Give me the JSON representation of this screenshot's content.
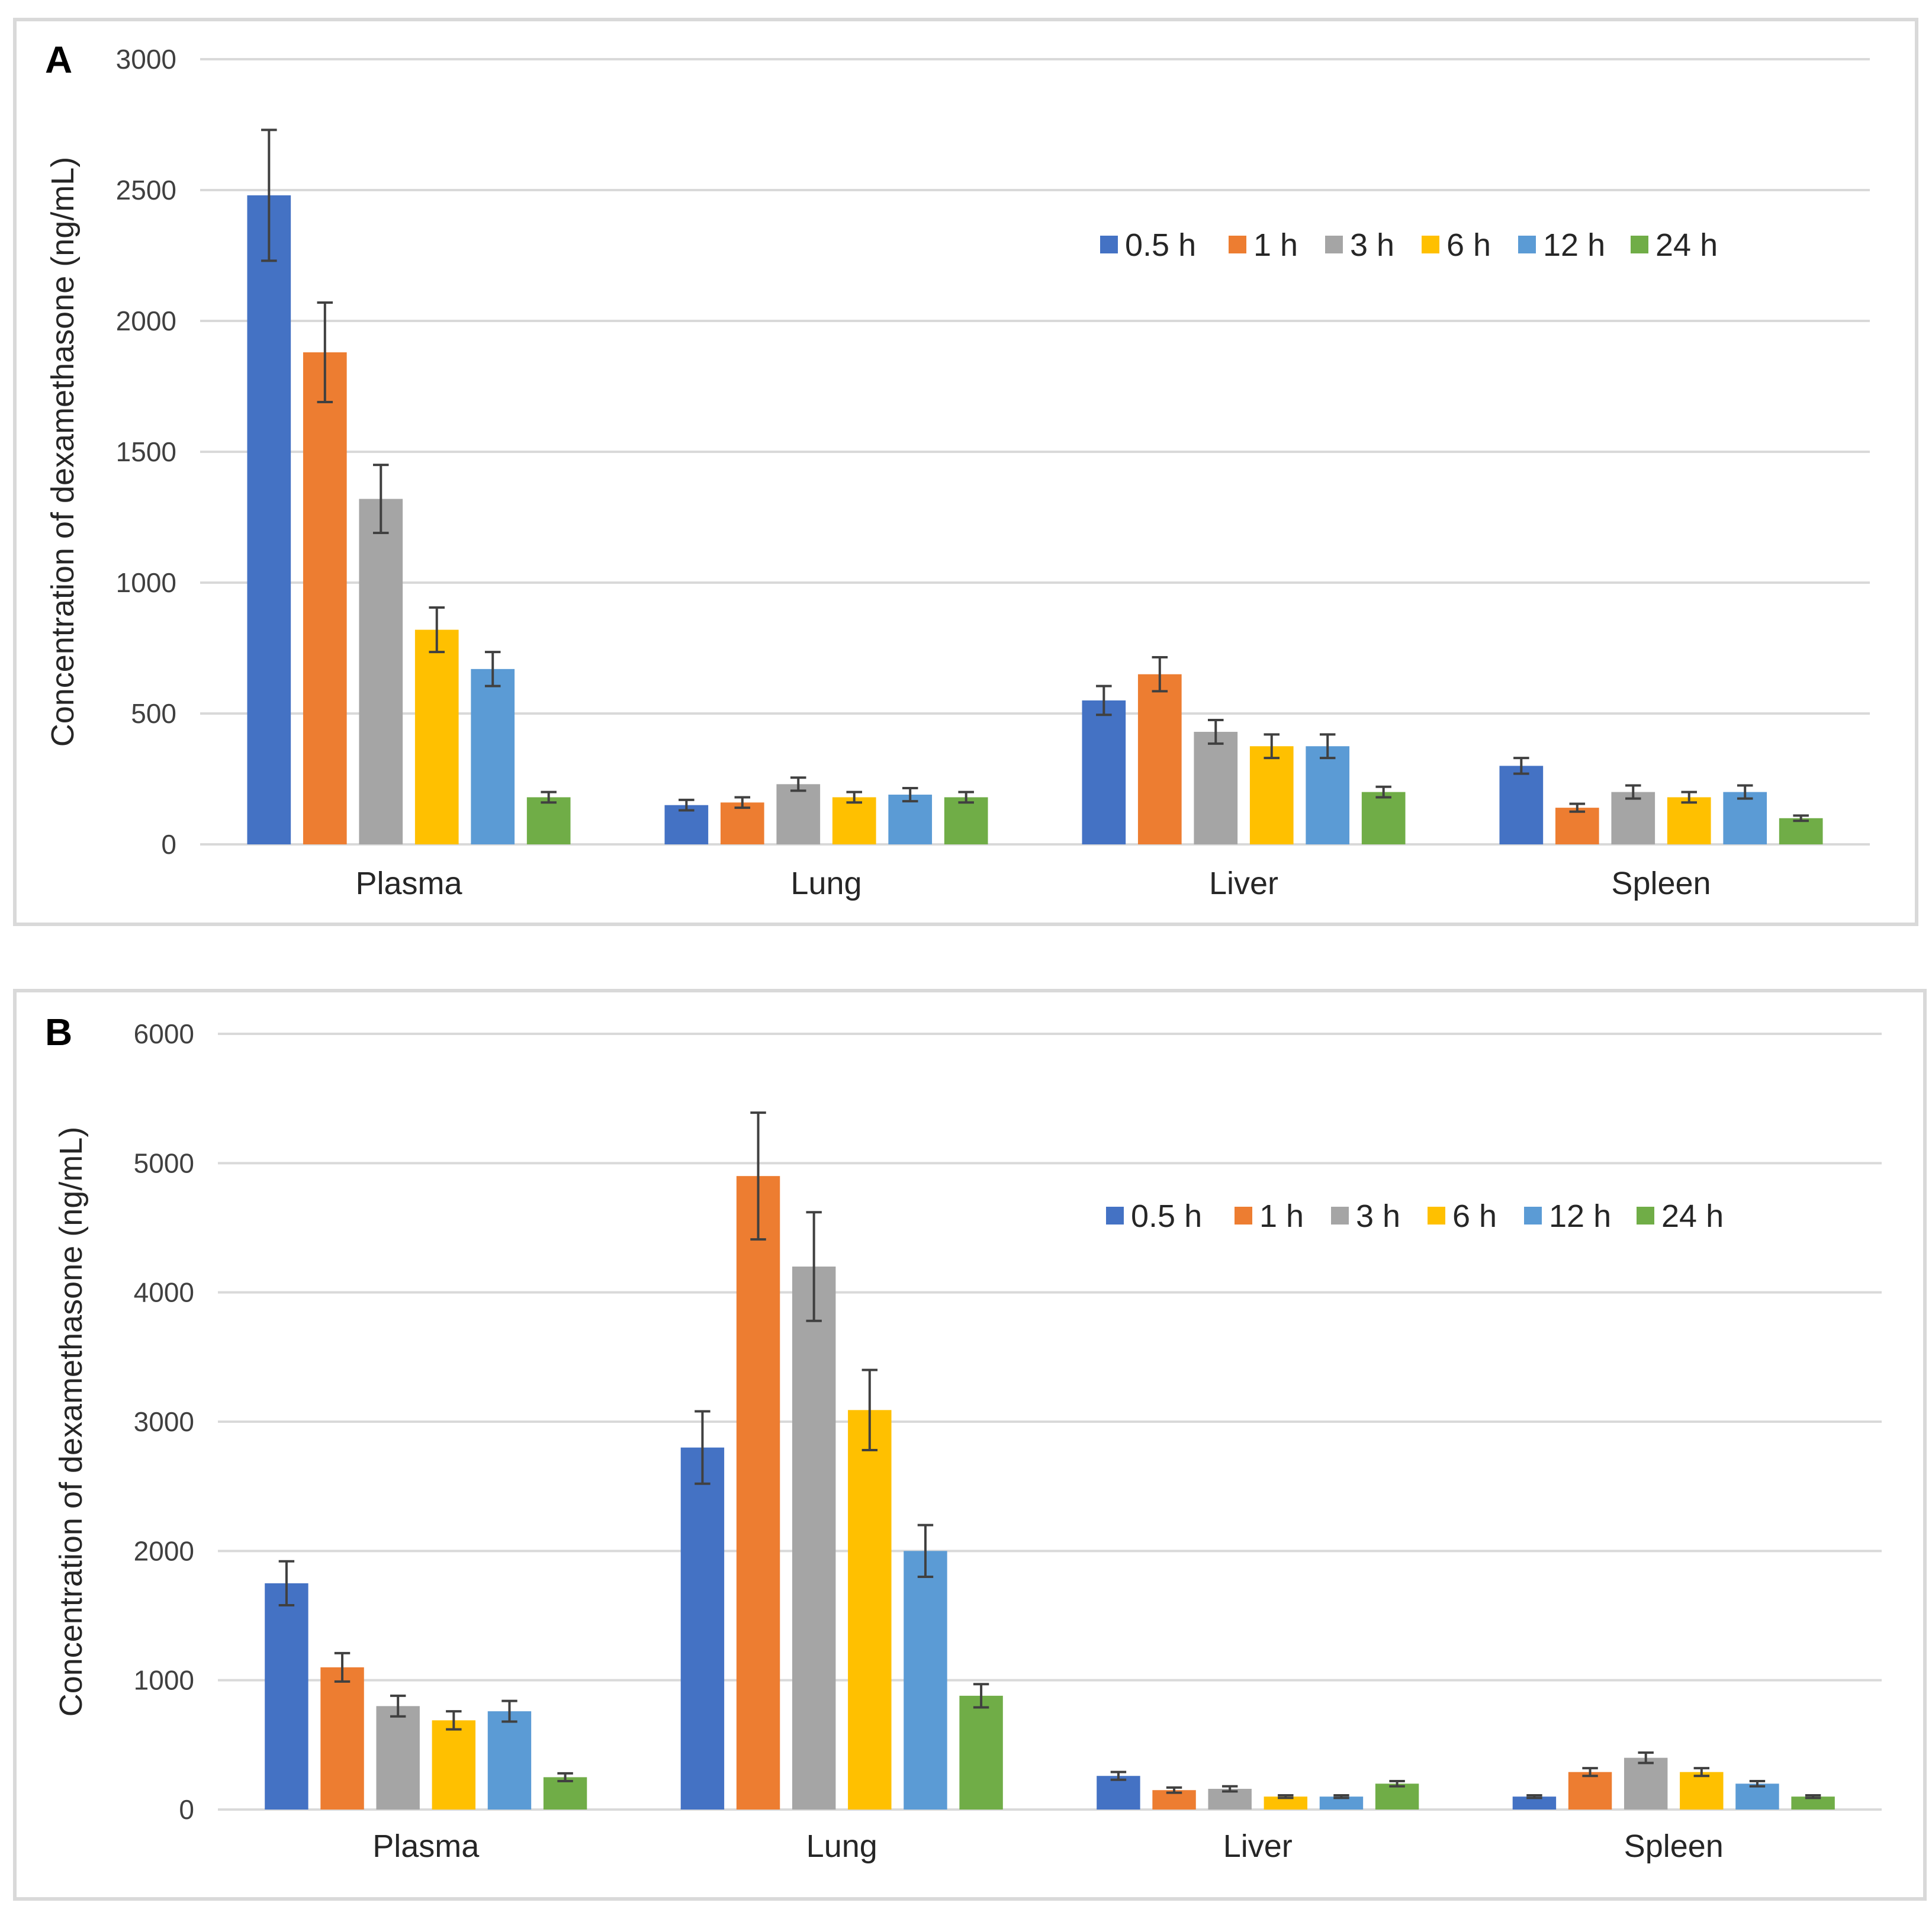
{
  "colors": {
    "series": [
      "#4472c4",
      "#ed7d31",
      "#a5a5a5",
      "#ffc000",
      "#5b9bd5",
      "#70ad47"
    ],
    "gridline": "#d9d9d9",
    "errorbar": "#404040"
  },
  "chart_data": [
    {
      "type": "bar",
      "panel_label": "A",
      "title": "",
      "xlabel": "",
      "ylabel": "Concentration of dexamethasone (ng/mL)",
      "ylim": [
        0,
        3000
      ],
      "yticks": [
        0,
        500,
        1000,
        1500,
        2000,
        2500,
        3000
      ],
      "grid": true,
      "legend_position": "top-right",
      "categories": [
        "Plasma",
        "Lung",
        "Liver",
        "Spleen"
      ],
      "series": [
        {
          "name": "0.5 h",
          "values": [
            2480,
            150,
            550,
            300
          ],
          "errors": [
            250,
            20,
            55,
            30
          ]
        },
        {
          "name": "1 h",
          "values": [
            1880,
            160,
            650,
            140
          ],
          "errors": [
            190,
            20,
            65,
            15
          ]
        },
        {
          "name": "3 h",
          "values": [
            1320,
            230,
            430,
            200
          ],
          "errors": [
            130,
            25,
            45,
            25
          ]
        },
        {
          "name": "6 h",
          "values": [
            820,
            180,
            375,
            180
          ],
          "errors": [
            85,
            20,
            45,
            20
          ]
        },
        {
          "name": "12 h",
          "values": [
            670,
            190,
            375,
            200
          ],
          "errors": [
            65,
            25,
            45,
            25
          ]
        },
        {
          "name": "24 h",
          "values": [
            180,
            180,
            200,
            100
          ],
          "errors": [
            20,
            20,
            20,
            10
          ]
        }
      ]
    },
    {
      "type": "bar",
      "panel_label": "B",
      "title": "",
      "xlabel": "",
      "ylabel": "Concentration of dexamethasone (ng/mL)",
      "ylim": [
        0,
        6000
      ],
      "yticks": [
        0,
        1000,
        2000,
        3000,
        4000,
        5000,
        6000
      ],
      "grid": true,
      "legend_position": "top-right",
      "categories": [
        "Plasma",
        "Lung",
        "Liver",
        "Spleen"
      ],
      "series": [
        {
          "name": "0.5 h",
          "values": [
            1750,
            2800,
            260,
            100
          ],
          "errors": [
            170,
            280,
            30,
            10
          ]
        },
        {
          "name": "1 h",
          "values": [
            1100,
            4900,
            150,
            290
          ],
          "errors": [
            110,
            490,
            20,
            30
          ]
        },
        {
          "name": "3 h",
          "values": [
            800,
            4200,
            160,
            400
          ],
          "errors": [
            80,
            420,
            20,
            40
          ]
        },
        {
          "name": "6 h",
          "values": [
            690,
            3090,
            100,
            290
          ],
          "errors": [
            70,
            310,
            10,
            30
          ]
        },
        {
          "name": "12 h",
          "values": [
            760,
            2000,
            100,
            200
          ],
          "errors": [
            80,
            200,
            10,
            20
          ]
        },
        {
          "name": "24 h",
          "values": [
            250,
            880,
            200,
            100
          ],
          "errors": [
            30,
            90,
            20,
            10
          ]
        }
      ]
    }
  ]
}
